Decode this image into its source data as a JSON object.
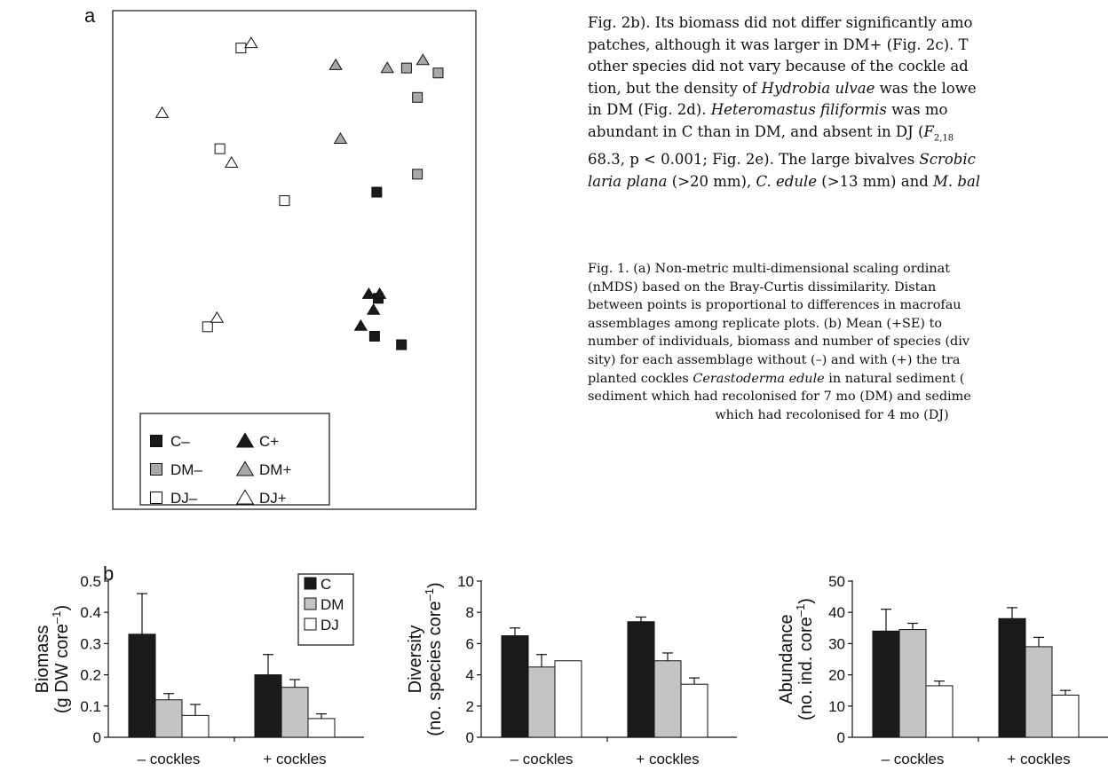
{
  "panel_a": {
    "letter": "a",
    "legend": [
      {
        "label": "C–",
        "marker": "square",
        "fill": "#1a1a1a"
      },
      {
        "label": "C+",
        "marker": "triangle",
        "fill": "#1a1a1a"
      },
      {
        "label": "DM–",
        "marker": "square",
        "fill": "#a8a8a8"
      },
      {
        "label": "DM+",
        "marker": "triangle",
        "fill": "#a8a8a8"
      },
      {
        "label": "DJ–",
        "marker": "square",
        "fill": "#ffffff"
      },
      {
        "label": "DJ+",
        "marker": "triangle",
        "fill": "#ffffff"
      }
    ]
  },
  "body_text": {
    "l1": "Fig. 2b). Its biomass did not differ significantly amo",
    "l2": "patches, although it was larger in DM+ (Fig. 2c). T",
    "l3": "other species did not vary because of the cockle ad",
    "l4_a": "tion, but the density of ",
    "l4_sp": "Hydrobia ulvae",
    "l4_b": " was the lowe",
    "l5_a": "in DM (Fig. 2d). ",
    "l5_sp": "Heteromastus filiformis",
    "l5_b": " was mo",
    "l6_a": "abundant in C than in DM, and absent in DJ (",
    "l6_f": "F",
    "l6_sub": "2,18",
    "l7": "68.3, p < 0.001; Fig. 2e). The large bivalves ",
    "l7_sp": "Scrobic",
    "l8_sp": "laria plana",
    "l8_a": " (>20 mm), ",
    "l8_sp2": "C. edule",
    "l8_b": " (>13 mm) and ",
    "l8_sp3": "M. bal"
  },
  "caption": {
    "l1": "Fig. 1. (a) Non-metric multi-dimensional scaling ordinat",
    "l2": "(nMDS) based on the Bray-Curtis dissimilarity. Distan",
    "l3": "between points is proportional to differences in macrofau",
    "l4": "assemblages among replicate plots. (b) Mean (+SE) to",
    "l5": "number of individuals, biomass and number of species (div",
    "l6": "sity) for each assemblage without (–) and with (+) the tra",
    "l7_a": "planted cockles ",
    "l7_sp": "Cerastoderma edule",
    "l7_b": " in natural sediment (",
    "l8": "sediment which had recolonised for 7 mo (DM) and sedime",
    "l9": "which had recolonised for 4 mo (DJ)"
  },
  "panel_b": {
    "letter": "b",
    "legend": [
      {
        "label": "C",
        "fill": "#1a1a1a"
      },
      {
        "label": "DM",
        "fill": "#c4c4c4"
      },
      {
        "label": "DJ",
        "fill": "#ffffff"
      }
    ]
  },
  "chart_data": [
    {
      "type": "scatter",
      "title": "",
      "xlabel": "",
      "ylabel": "",
      "axes": "none (nMDS ordination, no tick labels)",
      "series": [
        {
          "name": "C–",
          "marker": "square",
          "color": "#1a1a1a",
          "points": [
            [
              0.727,
              0.636
            ],
            [
              0.731,
              0.423
            ],
            [
              0.721,
              0.347
            ],
            [
              0.795,
              0.33
            ]
          ]
        },
        {
          "name": "C+",
          "marker": "triangle",
          "color": "#1a1a1a",
          "points": [
            [
              0.705,
              0.432
            ],
            [
              0.735,
              0.432
            ],
            [
              0.718,
              0.4
            ],
            [
              0.683,
              0.368
            ]
          ]
        },
        {
          "name": "DM–",
          "marker": "square",
          "color": "#a8a8a8",
          "points": [
            [
              0.809,
              0.885
            ],
            [
              0.896,
              0.875
            ],
            [
              0.839,
              0.826
            ],
            [
              0.839,
              0.672
            ]
          ]
        },
        {
          "name": "DM+",
          "marker": "triangle",
          "color": "#a8a8a8",
          "points": [
            [
              0.614,
              0.891
            ],
            [
              0.756,
              0.885
            ],
            [
              0.854,
              0.901
            ],
            [
              0.627,
              0.743
            ]
          ]
        },
        {
          "name": "DJ–",
          "marker": "square",
          "color": "#ffffff",
          "points": [
            [
              0.353,
              0.925
            ],
            [
              0.295,
              0.723
            ],
            [
              0.473,
              0.619
            ],
            [
              0.261,
              0.366
            ]
          ]
        },
        {
          "name": "DJ+",
          "marker": "triangle",
          "color": "#ffffff",
          "points": [
            [
              0.381,
              0.935
            ],
            [
              0.136,
              0.795
            ],
            [
              0.327,
              0.695
            ],
            [
              0.287,
              0.384
            ]
          ]
        }
      ]
    },
    {
      "type": "bar",
      "ylabel": "Biomass",
      "ylabel_unit": "(g DW core",
      "ylabel_sup": "–1",
      "ylim": [
        0,
        0.5
      ],
      "yticks": [
        "0",
        "0.1",
        "0.2",
        "0.3",
        "0.4",
        "0.5"
      ],
      "ytick_values": [
        0,
        0.1,
        0.2,
        0.3,
        0.4,
        0.5
      ],
      "categories": [
        "–  cockles",
        "+ cockles"
      ],
      "series": [
        {
          "name": "C",
          "color": "#1a1a1a",
          "values": [
            0.33,
            0.2
          ],
          "se": [
            0.13,
            0.065
          ]
        },
        {
          "name": "DM",
          "color": "#c4c4c4",
          "values": [
            0.12,
            0.16
          ],
          "se": [
            0.02,
            0.025
          ]
        },
        {
          "name": "DJ",
          "color": "#ffffff",
          "values": [
            0.07,
            0.06
          ],
          "se": [
            0.035,
            0.015
          ]
        }
      ]
    },
    {
      "type": "bar",
      "ylabel": "Diversity",
      "ylabel_unit": "(no. species core",
      "ylabel_sup": "–1",
      "ylim": [
        0,
        10
      ],
      "yticks": [
        "0",
        "2",
        "4",
        "6",
        "8",
        "10"
      ],
      "ytick_values": [
        0,
        2,
        4,
        6,
        8,
        10
      ],
      "categories": [
        "–  cockles",
        "+ cockles"
      ],
      "series": [
        {
          "name": "C",
          "color": "#1a1a1a",
          "values": [
            6.5,
            7.4
          ],
          "se": [
            0.5,
            0.3
          ]
        },
        {
          "name": "DM",
          "color": "#c4c4c4",
          "values": [
            4.5,
            4.9
          ],
          "se": [
            0.8,
            0.5
          ]
        },
        {
          "name": "DJ",
          "color": "#ffffff",
          "values": [
            4.9,
            3.4
          ],
          "se": [
            0.0,
            0.4
          ]
        }
      ]
    },
    {
      "type": "bar",
      "ylabel": "Abundance",
      "ylabel_unit": "(no. ind. core",
      "ylabel_sup": "–1",
      "ylim": [
        0,
        50
      ],
      "yticks": [
        "0",
        "10",
        "20",
        "30",
        "40",
        "50"
      ],
      "ytick_values": [
        0,
        10,
        20,
        30,
        40,
        50
      ],
      "categories": [
        "–  cockles",
        "+ cockles"
      ],
      "series": [
        {
          "name": "C",
          "color": "#1a1a1a",
          "values": [
            34,
            38
          ],
          "se": [
            7,
            3.5
          ]
        },
        {
          "name": "DM",
          "color": "#c4c4c4",
          "values": [
            34.5,
            29
          ],
          "se": [
            2,
            3
          ]
        },
        {
          "name": "DJ",
          "color": "#ffffff",
          "values": [
            16.5,
            13.5
          ],
          "se": [
            1.5,
            1.5
          ]
        }
      ]
    }
  ]
}
